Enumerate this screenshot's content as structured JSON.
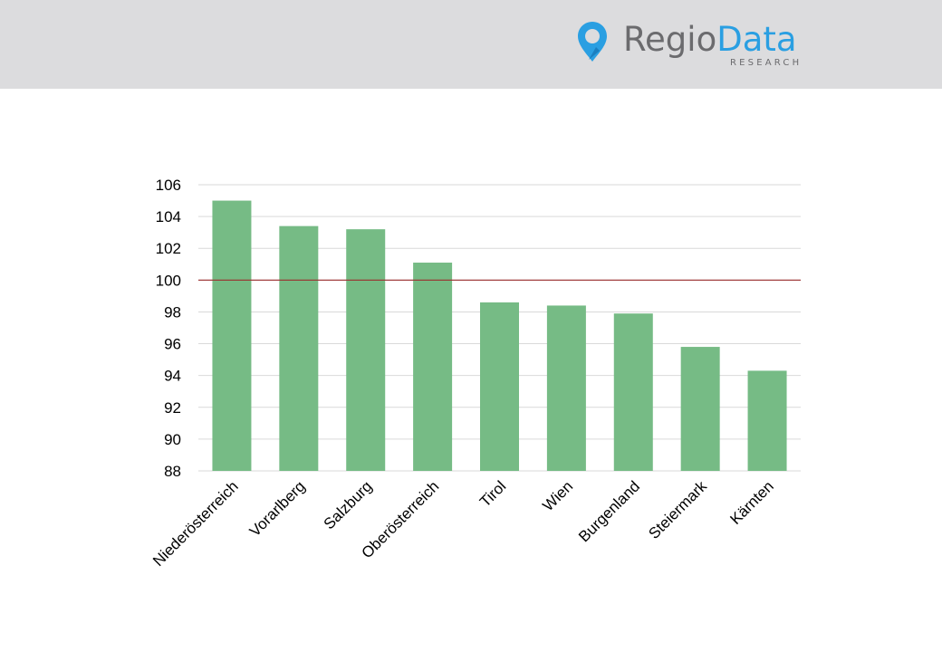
{
  "header": {
    "logo": {
      "word_part1": "Regio",
      "word_part2": "Data",
      "subtitle": "RESEARCH",
      "primary_color": "#6b6b6e",
      "accent_color": "#2a9fe2",
      "icon": "location-pin-icon"
    },
    "band_color": "#dcdcde"
  },
  "chart_data": {
    "type": "bar",
    "title": "",
    "xlabel": "",
    "ylabel": "",
    "categories": [
      "Niederösterreich",
      "Vorarlberg",
      "Salzburg",
      "Oberösterreich",
      "Tirol",
      "Wien",
      "Burgenland",
      "Steiermark",
      "Kärnten"
    ],
    "values": [
      105.0,
      103.4,
      103.2,
      101.1,
      98.6,
      98.4,
      97.9,
      95.8,
      94.3
    ],
    "ylim": [
      88,
      106
    ],
    "yticks": [
      "88",
      "90",
      "92",
      "94",
      "96",
      "98",
      "100",
      "102",
      "104",
      "106"
    ],
    "reference_line": 100,
    "grid": true,
    "legend": "none",
    "bar_color": "#76bb85",
    "reference_line_color": "#9b2c2c",
    "grid_color": "#d9d9d9"
  }
}
